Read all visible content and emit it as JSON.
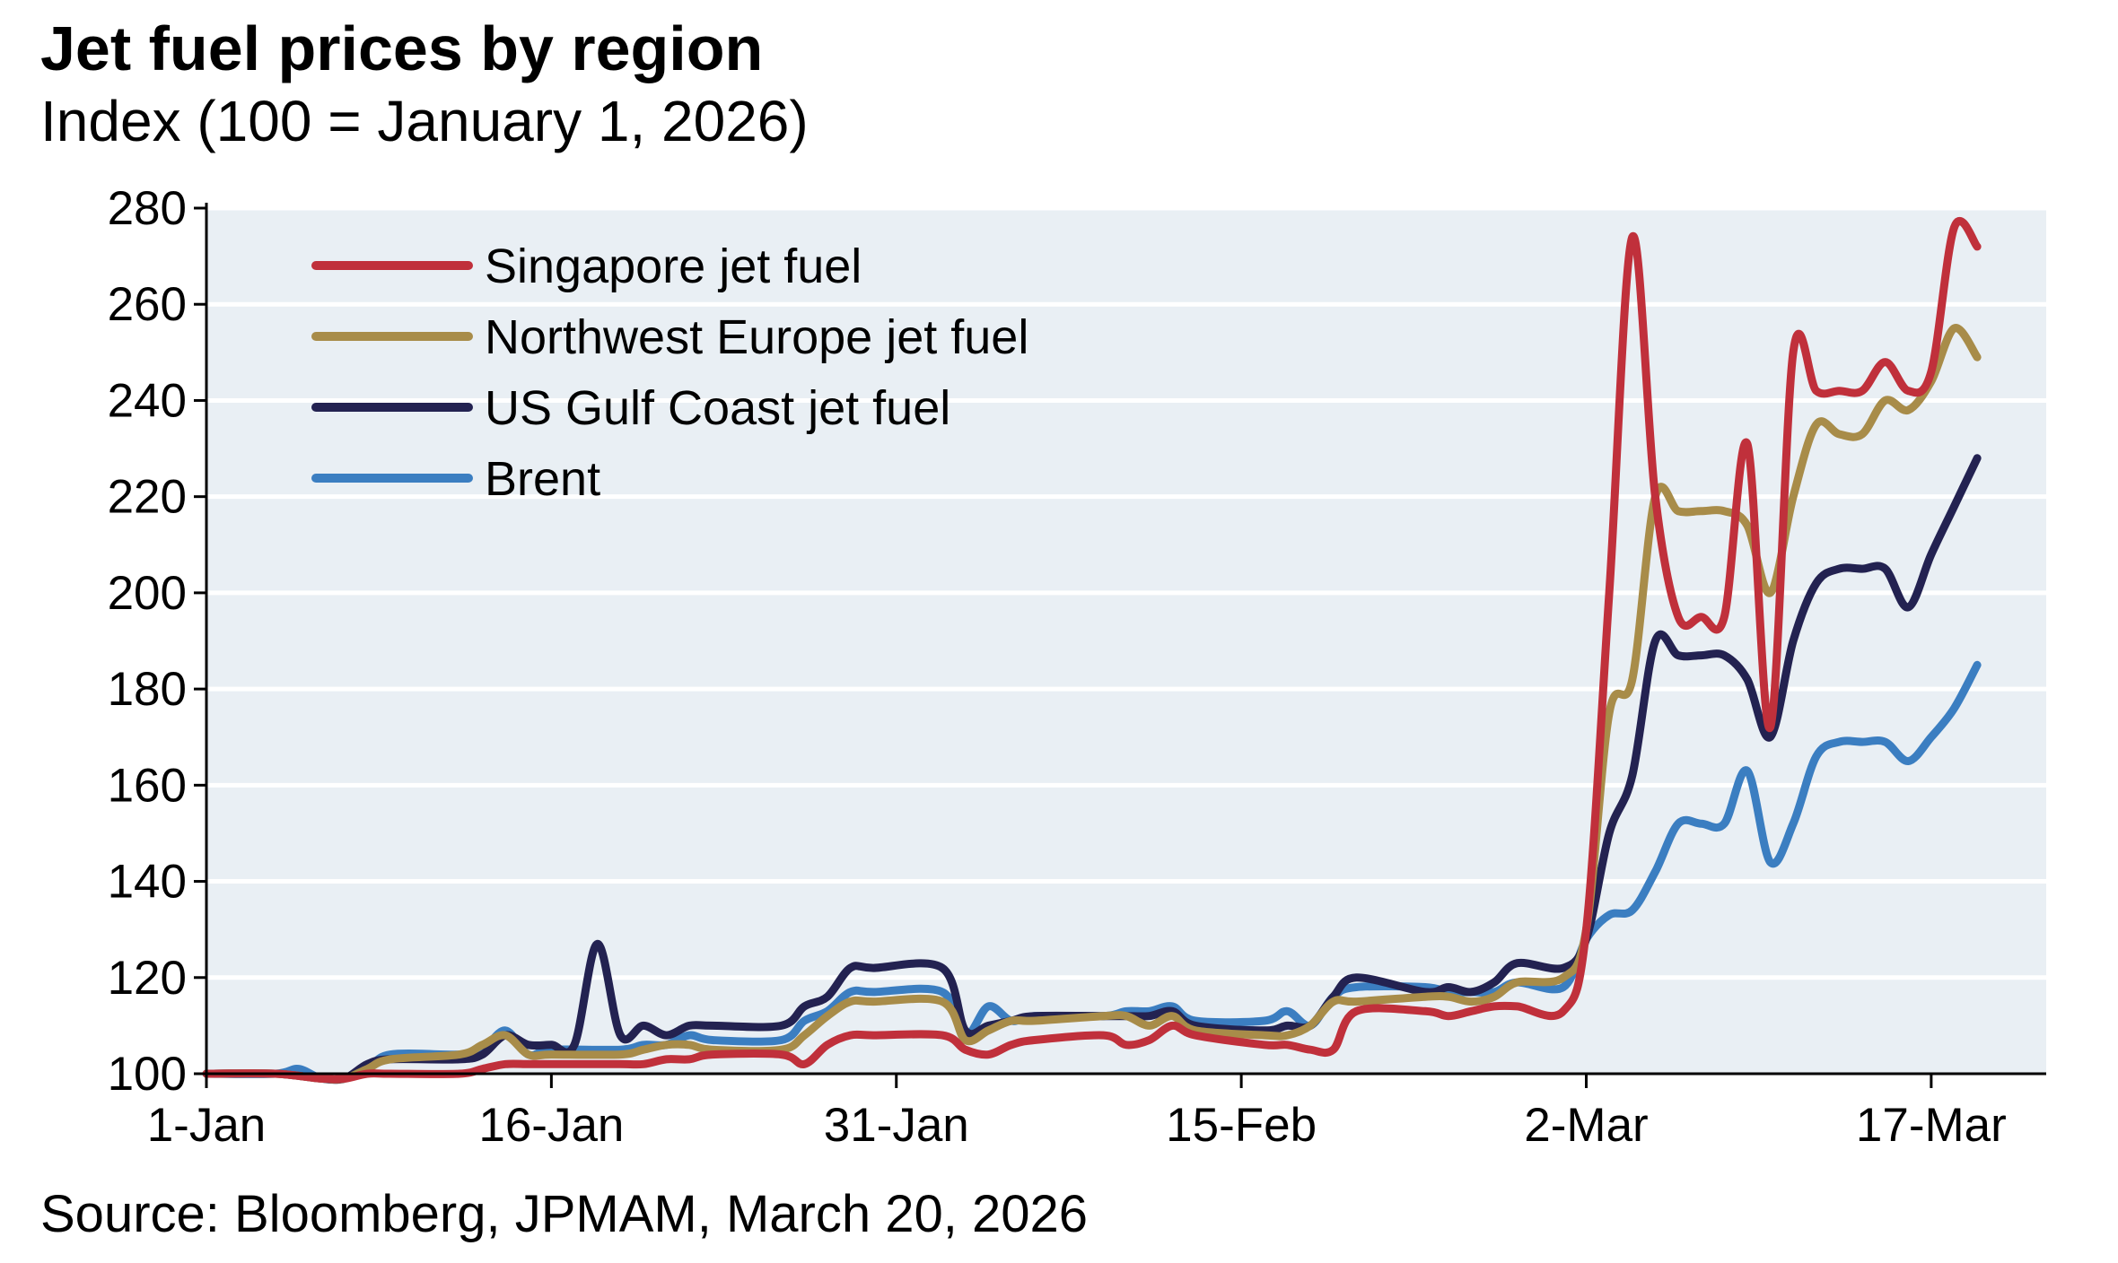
{
  "chart_data": {
    "type": "line",
    "title": "Jet fuel prices by region",
    "subtitle": "Index (100 = January 1, 2026)",
    "source": "Source: Bloomberg, JPMAM, March 20, 2026",
    "ylim": [
      100,
      280
    ],
    "yticks": [
      100,
      120,
      140,
      160,
      180,
      200,
      220,
      240,
      260,
      280
    ],
    "xlim": [
      "2026-01-01",
      "2026-03-22"
    ],
    "xticks": [
      {
        "date": "2026-01-01",
        "label": "1-Jan"
      },
      {
        "date": "2026-01-16",
        "label": "16-Jan"
      },
      {
        "date": "2026-01-31",
        "label": "31-Jan"
      },
      {
        "date": "2026-02-15",
        "label": "15-Feb"
      },
      {
        "date": "2026-03-02",
        "label": "2-Mar"
      },
      {
        "date": "2026-03-17",
        "label": "17-Mar"
      }
    ],
    "grid": "horizontal",
    "legend_position": "top-left",
    "series": [
      {
        "name": "Singapore jet fuel",
        "color": "#c0303b",
        "points": [
          [
            "2026-01-01",
            100
          ],
          [
            "2026-01-04",
            100
          ],
          [
            "2026-01-06",
            99
          ],
          [
            "2026-01-07",
            99
          ],
          [
            "2026-01-08",
            100
          ],
          [
            "2026-01-09",
            100
          ],
          [
            "2026-01-12",
            100
          ],
          [
            "2026-01-13",
            101
          ],
          [
            "2026-01-14",
            102
          ],
          [
            "2026-01-15",
            102
          ],
          [
            "2026-01-16",
            102
          ],
          [
            "2026-01-19",
            102
          ],
          [
            "2026-01-20",
            102
          ],
          [
            "2026-01-21",
            103
          ],
          [
            "2026-01-22",
            103
          ],
          [
            "2026-01-23",
            104
          ],
          [
            "2026-01-26",
            104
          ],
          [
            "2026-01-27",
            102
          ],
          [
            "2026-01-28",
            106
          ],
          [
            "2026-01-29",
            108
          ],
          [
            "2026-01-30",
            108
          ],
          [
            "2026-02-02",
            108
          ],
          [
            "2026-02-03",
            105
          ],
          [
            "2026-02-04",
            104
          ],
          [
            "2026-02-05",
            106
          ],
          [
            "2026-02-06",
            107
          ],
          [
            "2026-02-09",
            108
          ],
          [
            "2026-02-10",
            106
          ],
          [
            "2026-02-11",
            107
          ],
          [
            "2026-02-12",
            110
          ],
          [
            "2026-02-13",
            108
          ],
          [
            "2026-02-16",
            106
          ],
          [
            "2026-02-17",
            106
          ],
          [
            "2026-02-18",
            105
          ],
          [
            "2026-02-19",
            105
          ],
          [
            "2026-02-20",
            113
          ],
          [
            "2026-02-23",
            113
          ],
          [
            "2026-02-24",
            112
          ],
          [
            "2026-02-25",
            113
          ],
          [
            "2026-02-26",
            114
          ],
          [
            "2026-02-27",
            114
          ],
          [
            "2026-03-01",
            113
          ],
          [
            "2026-03-02",
            130
          ],
          [
            "2026-03-03",
            200
          ],
          [
            "2026-03-04",
            274
          ],
          [
            "2026-03-05",
            220
          ],
          [
            "2026-03-06",
            195
          ],
          [
            "2026-03-07",
            195
          ],
          [
            "2026-03-08",
            195
          ],
          [
            "2026-03-09",
            231
          ],
          [
            "2026-03-10",
            172
          ],
          [
            "2026-03-11",
            250
          ],
          [
            "2026-03-12",
            242
          ],
          [
            "2026-03-13",
            242
          ],
          [
            "2026-03-14",
            242
          ],
          [
            "2026-03-15",
            248
          ],
          [
            "2026-03-16",
            242
          ],
          [
            "2026-03-17",
            246
          ],
          [
            "2026-03-18",
            276
          ],
          [
            "2026-03-19",
            272
          ]
        ]
      },
      {
        "name": "Northwest Europe jet fuel",
        "color": "#a88c49",
        "points": [
          [
            "2026-01-01",
            100
          ],
          [
            "2026-01-04",
            100
          ],
          [
            "2026-01-06",
            99
          ],
          [
            "2026-01-07",
            99
          ],
          [
            "2026-01-08",
            101
          ],
          [
            "2026-01-09",
            103
          ],
          [
            "2026-01-12",
            104
          ],
          [
            "2026-01-13",
            106
          ],
          [
            "2026-01-14",
            108
          ],
          [
            "2026-01-15",
            104
          ],
          [
            "2026-01-16",
            104
          ],
          [
            "2026-01-19",
            104
          ],
          [
            "2026-01-20",
            105
          ],
          [
            "2026-01-21",
            106
          ],
          [
            "2026-01-22",
            106
          ],
          [
            "2026-01-23",
            105
          ],
          [
            "2026-01-26",
            105
          ],
          [
            "2026-01-27",
            108
          ],
          [
            "2026-01-28",
            112
          ],
          [
            "2026-01-29",
            115
          ],
          [
            "2026-01-30",
            115
          ],
          [
            "2026-02-02",
            115
          ],
          [
            "2026-02-03",
            107
          ],
          [
            "2026-02-04",
            109
          ],
          [
            "2026-02-05",
            111
          ],
          [
            "2026-02-06",
            111
          ],
          [
            "2026-02-09",
            112
          ],
          [
            "2026-02-10",
            112
          ],
          [
            "2026-02-11",
            110
          ],
          [
            "2026-02-12",
            112
          ],
          [
            "2026-02-13",
            109
          ],
          [
            "2026-02-16",
            108
          ],
          [
            "2026-02-17",
            108
          ],
          [
            "2026-02-18",
            110
          ],
          [
            "2026-02-19",
            115
          ],
          [
            "2026-02-20",
            115
          ],
          [
            "2026-02-23",
            116
          ],
          [
            "2026-02-24",
            116
          ],
          [
            "2026-02-25",
            115
          ],
          [
            "2026-02-26",
            116
          ],
          [
            "2026-02-27",
            119
          ],
          [
            "2026-03-01",
            120
          ],
          [
            "2026-03-02",
            130
          ],
          [
            "2026-03-03",
            175
          ],
          [
            "2026-03-04",
            182
          ],
          [
            "2026-03-05",
            220
          ],
          [
            "2026-03-06",
            217
          ],
          [
            "2026-03-07",
            217
          ],
          [
            "2026-03-08",
            217
          ],
          [
            "2026-03-09",
            214
          ],
          [
            "2026-03-10",
            200
          ],
          [
            "2026-03-11",
            220
          ],
          [
            "2026-03-12",
            235
          ],
          [
            "2026-03-13",
            233
          ],
          [
            "2026-03-14",
            233
          ],
          [
            "2026-03-15",
            240
          ],
          [
            "2026-03-16",
            238
          ],
          [
            "2026-03-17",
            244
          ],
          [
            "2026-03-18",
            255
          ],
          [
            "2026-03-19",
            249
          ]
        ]
      },
      {
        "name": "US Gulf Coast jet fuel",
        "color": "#232251",
        "points": [
          [
            "2026-01-01",
            100
          ],
          [
            "2026-01-04",
            100
          ],
          [
            "2026-01-06",
            99
          ],
          [
            "2026-01-07",
            99
          ],
          [
            "2026-01-08",
            102
          ],
          [
            "2026-01-09",
            103
          ],
          [
            "2026-01-12",
            103
          ],
          [
            "2026-01-13",
            104
          ],
          [
            "2026-01-14",
            108
          ],
          [
            "2026-01-15",
            106
          ],
          [
            "2026-01-16",
            106
          ],
          [
            "2026-01-17",
            106
          ],
          [
            "2026-01-18",
            127
          ],
          [
            "2026-01-19",
            108
          ],
          [
            "2026-01-20",
            110
          ],
          [
            "2026-01-21",
            108
          ],
          [
            "2026-01-22",
            110
          ],
          [
            "2026-01-23",
            110
          ],
          [
            "2026-01-26",
            110
          ],
          [
            "2026-01-27",
            114
          ],
          [
            "2026-01-28",
            116
          ],
          [
            "2026-01-29",
            122
          ],
          [
            "2026-01-30",
            122
          ],
          [
            "2026-02-02",
            122
          ],
          [
            "2026-02-03",
            109
          ],
          [
            "2026-02-04",
            110
          ],
          [
            "2026-02-05",
            111
          ],
          [
            "2026-02-06",
            112
          ],
          [
            "2026-02-09",
            112
          ],
          [
            "2026-02-10",
            112
          ],
          [
            "2026-02-11",
            112
          ],
          [
            "2026-02-12",
            113
          ],
          [
            "2026-02-13",
            110
          ],
          [
            "2026-02-16",
            109
          ],
          [
            "2026-02-17",
            110
          ],
          [
            "2026-02-18",
            110
          ],
          [
            "2026-02-19",
            116
          ],
          [
            "2026-02-20",
            120
          ],
          [
            "2026-02-23",
            117
          ],
          [
            "2026-02-24",
            118
          ],
          [
            "2026-02-25",
            117
          ],
          [
            "2026-02-26",
            119
          ],
          [
            "2026-02-27",
            123
          ],
          [
            "2026-03-01",
            122
          ],
          [
            "2026-03-02",
            128
          ],
          [
            "2026-03-03",
            150
          ],
          [
            "2026-03-04",
            162
          ],
          [
            "2026-03-05",
            190
          ],
          [
            "2026-03-06",
            187
          ],
          [
            "2026-03-07",
            187
          ],
          [
            "2026-03-08",
            187
          ],
          [
            "2026-03-09",
            182
          ],
          [
            "2026-03-10",
            170
          ],
          [
            "2026-03-11",
            190
          ],
          [
            "2026-03-12",
            202
          ],
          [
            "2026-03-13",
            205
          ],
          [
            "2026-03-14",
            205
          ],
          [
            "2026-03-15",
            205
          ],
          [
            "2026-03-16",
            197
          ],
          [
            "2026-03-17",
            208
          ],
          [
            "2026-03-18",
            218
          ],
          [
            "2026-03-19",
            228
          ]
        ]
      },
      {
        "name": "Brent",
        "color": "#3b7ec1",
        "points": [
          [
            "2026-01-01",
            100
          ],
          [
            "2026-01-04",
            100
          ],
          [
            "2026-01-05",
            101
          ],
          [
            "2026-01-06",
            99
          ],
          [
            "2026-01-07",
            99
          ],
          [
            "2026-01-08",
            101
          ],
          [
            "2026-01-09",
            104
          ],
          [
            "2026-01-12",
            104
          ],
          [
            "2026-01-13",
            105
          ],
          [
            "2026-01-14",
            109
          ],
          [
            "2026-01-15",
            104
          ],
          [
            "2026-01-16",
            105
          ],
          [
            "2026-01-19",
            105
          ],
          [
            "2026-01-20",
            106
          ],
          [
            "2026-01-21",
            106
          ],
          [
            "2026-01-22",
            108
          ],
          [
            "2026-01-23",
            107
          ],
          [
            "2026-01-26",
            107
          ],
          [
            "2026-01-27",
            111
          ],
          [
            "2026-01-28",
            113
          ],
          [
            "2026-01-29",
            117
          ],
          [
            "2026-01-30",
            117
          ],
          [
            "2026-02-02",
            117
          ],
          [
            "2026-02-03",
            108
          ],
          [
            "2026-02-04",
            114
          ],
          [
            "2026-02-05",
            111
          ],
          [
            "2026-02-06",
            112
          ],
          [
            "2026-02-09",
            112
          ],
          [
            "2026-02-10",
            113
          ],
          [
            "2026-02-11",
            113
          ],
          [
            "2026-02-12",
            114
          ],
          [
            "2026-02-13",
            111
          ],
          [
            "2026-02-16",
            111
          ],
          [
            "2026-02-17",
            113
          ],
          [
            "2026-02-18",
            110
          ],
          [
            "2026-02-19",
            116
          ],
          [
            "2026-02-20",
            118
          ],
          [
            "2026-02-23",
            118
          ],
          [
            "2026-02-24",
            117
          ],
          [
            "2026-02-25",
            117
          ],
          [
            "2026-02-26",
            117
          ],
          [
            "2026-02-27",
            119
          ],
          [
            "2026-03-01",
            118
          ],
          [
            "2026-03-02",
            128
          ],
          [
            "2026-03-03",
            133
          ],
          [
            "2026-03-04",
            134
          ],
          [
            "2026-03-05",
            142
          ],
          [
            "2026-03-06",
            152
          ],
          [
            "2026-03-07",
            152
          ],
          [
            "2026-03-08",
            152
          ],
          [
            "2026-03-09",
            163
          ],
          [
            "2026-03-10",
            144
          ],
          [
            "2026-03-11",
            152
          ],
          [
            "2026-03-12",
            166
          ],
          [
            "2026-03-13",
            169
          ],
          [
            "2026-03-14",
            169
          ],
          [
            "2026-03-15",
            169
          ],
          [
            "2026-03-16",
            165
          ],
          [
            "2026-03-17",
            170
          ],
          [
            "2026-03-18",
            176
          ],
          [
            "2026-03-19",
            185
          ]
        ]
      }
    ]
  }
}
